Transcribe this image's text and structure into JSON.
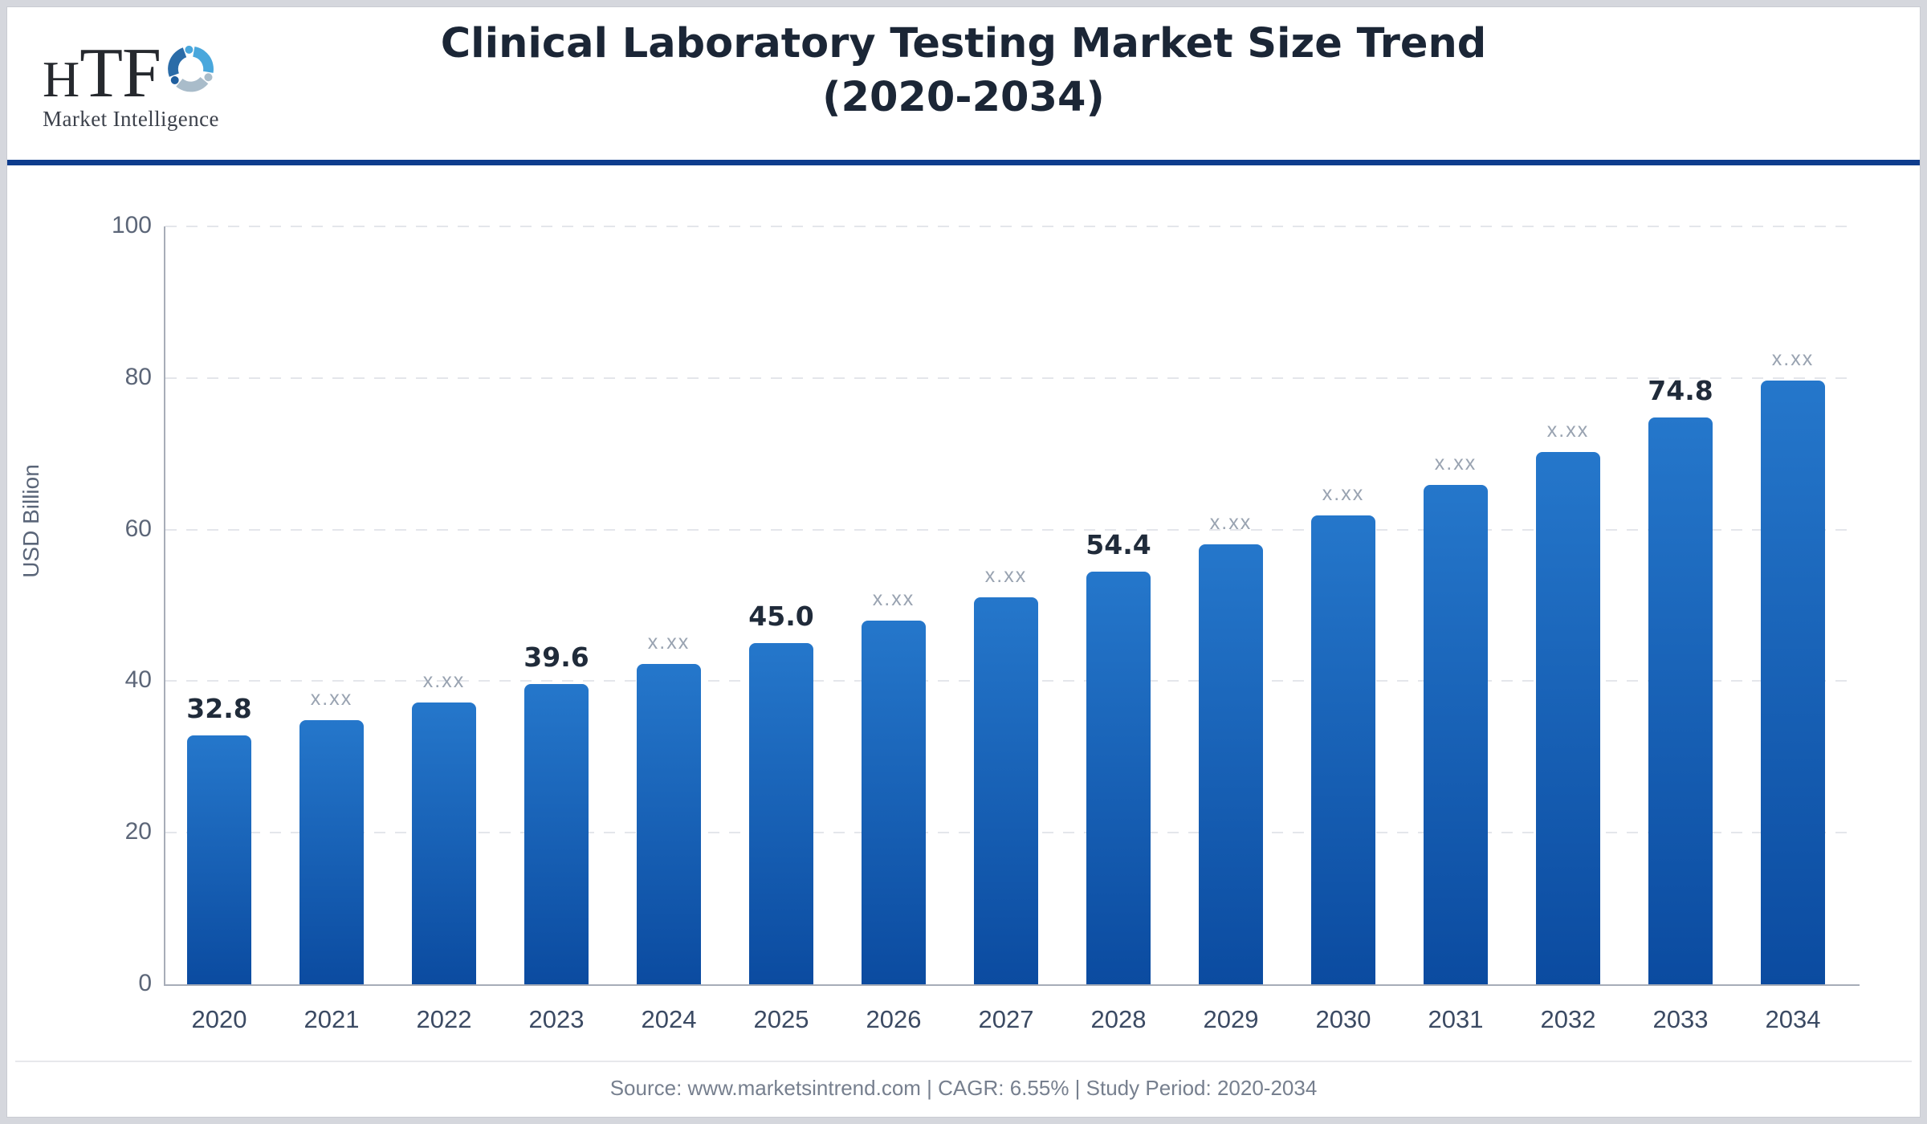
{
  "header": {
    "logo_main": "HTF",
    "logo_main_h": "H",
    "logo_main_tf": "TF",
    "logo_sub": "Market Intelligence",
    "title_line1": "Clinical Laboratory Testing Market Size Trend",
    "title_line2": "(2020-2034)"
  },
  "chart_data": {
    "type": "bar",
    "title": "Clinical Laboratory Testing Market Size Trend (2020-2034)",
    "xlabel": "",
    "ylabel": "USD Billion",
    "ylim": [
      0,
      100
    ],
    "yticks": [
      0,
      20,
      40,
      60,
      80,
      100
    ],
    "grid": "horizontal-dashed",
    "legend": "none",
    "categories": [
      "2020",
      "2021",
      "2022",
      "2023",
      "2024",
      "2025",
      "2026",
      "2027",
      "2028",
      "2029",
      "2030",
      "2031",
      "2032",
      "2033",
      "2034"
    ],
    "values": [
      32.8,
      34.9,
      37.2,
      39.6,
      42.3,
      45.0,
      48.0,
      51.1,
      54.4,
      58.1,
      61.9,
      65.9,
      70.2,
      74.8,
      79.7
    ],
    "bar_labels": [
      "32.8",
      "x.xx",
      "x.xx",
      "39.6",
      "x.xx",
      "45.0",
      "x.xx",
      "x.xx",
      "54.4",
      "x.xx",
      "x.xx",
      "x.xx",
      "x.xx",
      "74.8",
      "x.xx"
    ],
    "label_emphasis": [
      true,
      false,
      false,
      true,
      false,
      true,
      false,
      false,
      true,
      false,
      false,
      false,
      false,
      true,
      false
    ]
  },
  "footer": {
    "text": "Source: www.marketsintrend.com  |  CAGR: 6.55%  |  Study Period: 2020-2034"
  },
  "colors": {
    "bar_gradient_top": "#2577cb",
    "bar_gradient_bottom": "#0b4ba0",
    "header_rule": "#0e3c8d",
    "grid_line": "#e4e6eb",
    "axis_line": "#a7adb8",
    "title_text": "#1b2636",
    "tick_text": "#5c6678",
    "year_text": "#3b4a63",
    "value_bold_text": "#202b3a",
    "value_muted_text": "#99a3b1",
    "footer_text": "#767f8e",
    "logo_light_blue": "#49a7dc",
    "logo_gray_blue": "#a9bcca",
    "logo_dark_blue": "#2b6ca8",
    "logo_text": "#26292e"
  }
}
